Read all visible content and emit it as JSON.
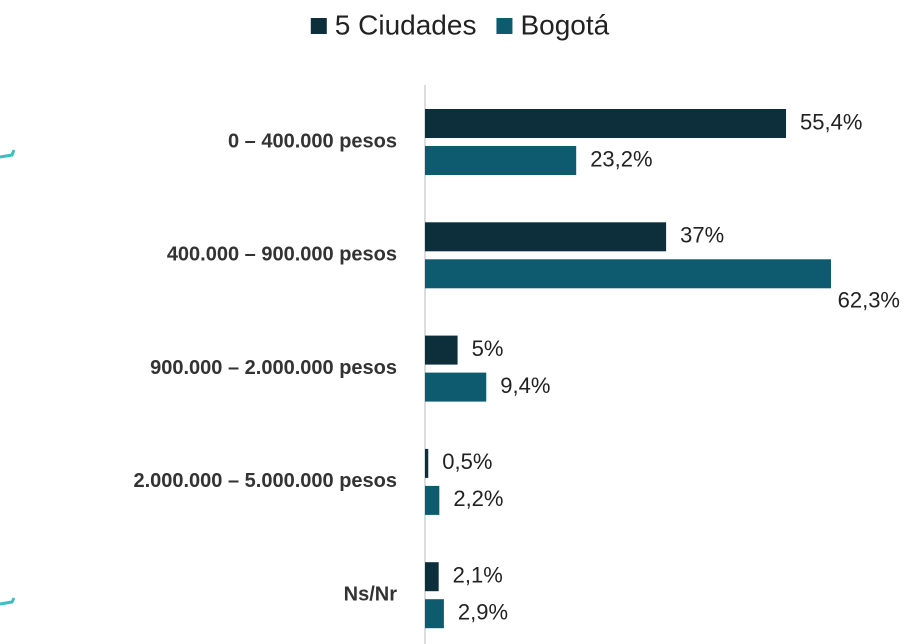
{
  "chart_data": {
    "type": "hbar",
    "categories": [
      "0 – 400.000 pesos",
      "400.000 – 900.000 pesos",
      "900.000 – 2.000.000 pesos",
      "2.000.000 – 5.000.000 pesos",
      "Ns/Nr"
    ],
    "series": [
      {
        "name": "5 Ciudades",
        "color": "#0c2f3b",
        "values": [
          55.4,
          37,
          5,
          0.5,
          2.1
        ],
        "value_labels": [
          "55,4%",
          "37%",
          "5%",
          "0,5%",
          "2,1%"
        ]
      },
      {
        "name": "Bogotá",
        "color": "#0e5a6e",
        "values": [
          23.2,
          62.3,
          9.4,
          2.2,
          2.9
        ],
        "value_labels": [
          "23,2%",
          "62,3%",
          "9,4%",
          "2,2%",
          "2,9%"
        ]
      }
    ],
    "legend": "top"
  }
}
